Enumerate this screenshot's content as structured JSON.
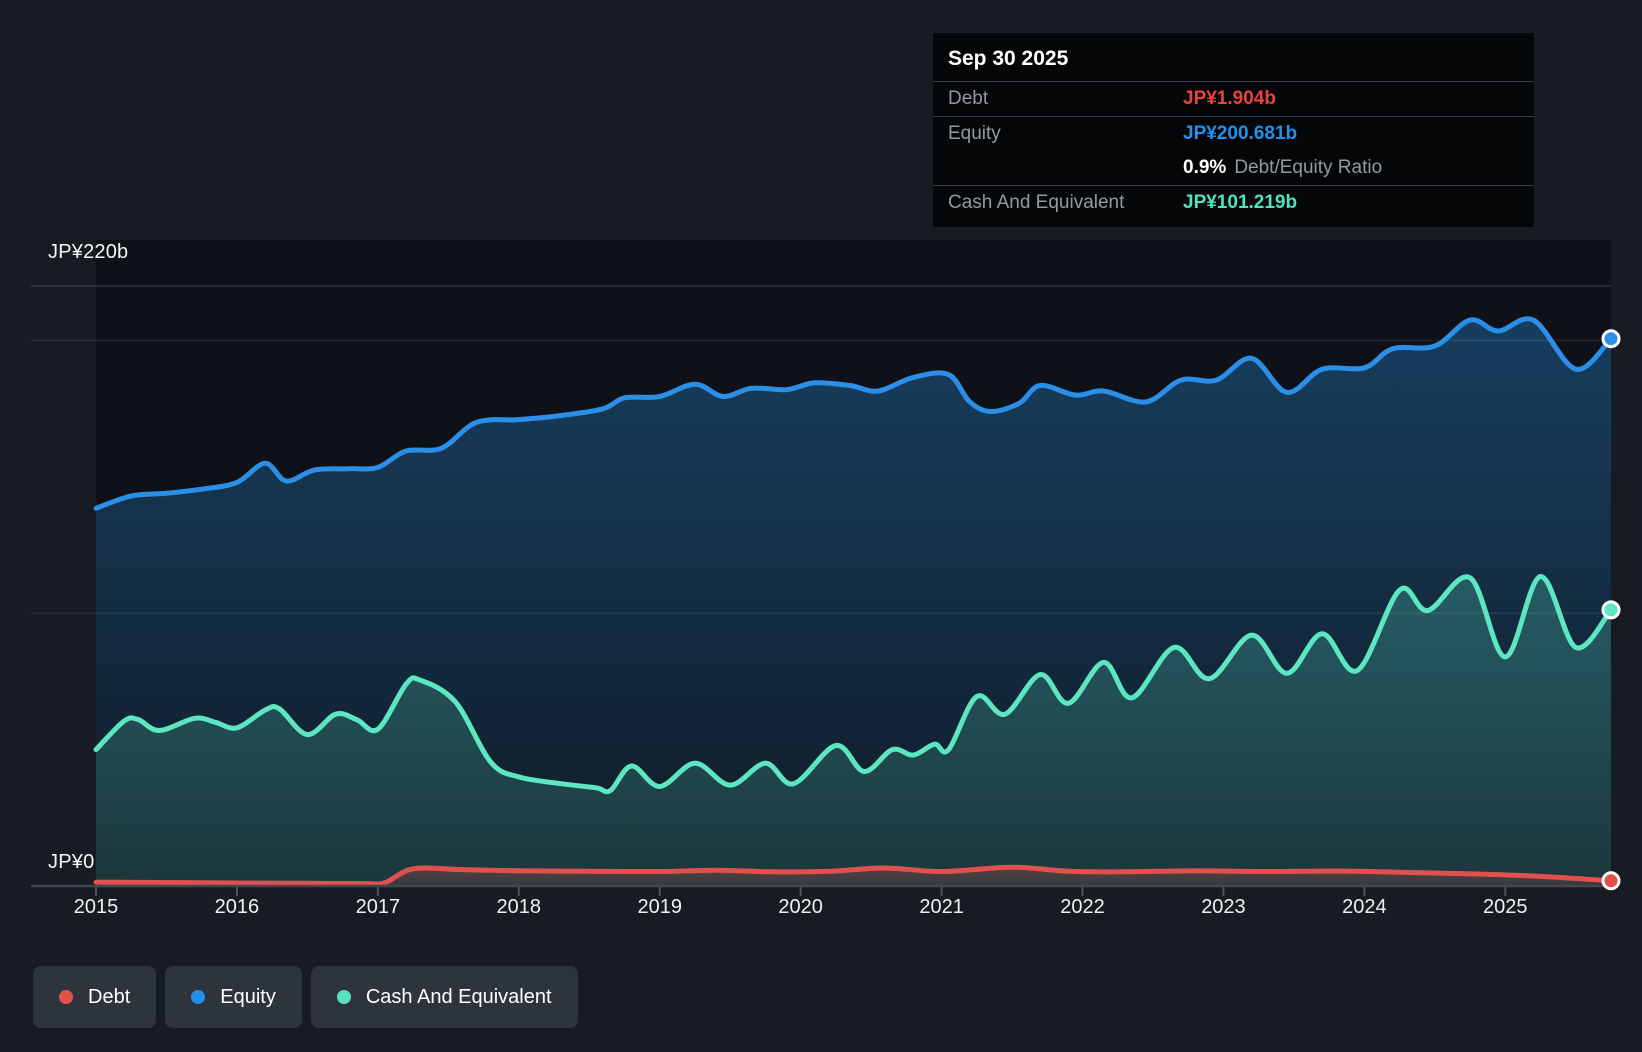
{
  "y_axis": {
    "top_label": "JP¥220b",
    "zero_label": "JP¥0"
  },
  "x_axis": {
    "ticks": [
      "2015",
      "2016",
      "2017",
      "2018",
      "2019",
      "2020",
      "2021",
      "2022",
      "2023",
      "2024",
      "2025"
    ]
  },
  "tooltip": {
    "title": "Sep 30 2025",
    "rows": [
      {
        "label": "Debt",
        "value": "JP¥1.904b",
        "color": "#e8433f"
      },
      {
        "label": "Equity",
        "value": "JP¥200.681b",
        "color": "#2292ec"
      }
    ],
    "ratio_value": "0.9%",
    "ratio_label": "Debt/Equity Ratio",
    "cash_label": "Cash And Equivalent",
    "cash_value": "JP¥101.219b",
    "cash_color": "#4fe3c0"
  },
  "legend": [
    {
      "label": "Debt",
      "color": "#e5504c"
    },
    {
      "label": "Equity",
      "color": "#2090e8"
    },
    {
      "label": "Cash And Equivalent",
      "color": "#5ce0bd"
    }
  ],
  "chart_data": {
    "type": "area",
    "unit": "JP¥ billions",
    "x_range": [
      2015.0,
      2025.75
    ],
    "ylim": [
      0,
      220
    ],
    "grid_values": [
      220,
      200,
      100,
      0
    ],
    "legend_position": "bottom-left",
    "hovered_point": {
      "date": "Sep 30 2025",
      "debt": 1.904,
      "equity": 200.681,
      "cash": 101.219,
      "debt_equity_ratio_pct": 0.9
    },
    "series": [
      {
        "name": "Equity",
        "color": "#2b8fe8",
        "points": [
          [
            2015.0,
            138.5
          ],
          [
            2015.25,
            143
          ],
          [
            2015.5,
            144
          ],
          [
            2015.75,
            145.5
          ],
          [
            2016.0,
            148
          ],
          [
            2016.2,
            155
          ],
          [
            2016.35,
            148.5
          ],
          [
            2016.55,
            152.5
          ],
          [
            2016.8,
            153
          ],
          [
            2017.0,
            153.5
          ],
          [
            2017.2,
            159.5
          ],
          [
            2017.45,
            160.5
          ],
          [
            2017.7,
            170
          ],
          [
            2018.0,
            171
          ],
          [
            2018.3,
            172.5
          ],
          [
            2018.6,
            175
          ],
          [
            2018.75,
            179
          ],
          [
            2019.0,
            179.5
          ],
          [
            2019.25,
            184
          ],
          [
            2019.45,
            179.5
          ],
          [
            2019.65,
            182.5
          ],
          [
            2019.9,
            182
          ],
          [
            2020.1,
            184.5
          ],
          [
            2020.35,
            183.5
          ],
          [
            2020.55,
            181.5
          ],
          [
            2020.8,
            186.5
          ],
          [
            2021.05,
            187.5
          ],
          [
            2021.2,
            177.5
          ],
          [
            2021.35,
            174
          ],
          [
            2021.55,
            177
          ],
          [
            2021.7,
            183.5
          ],
          [
            2021.95,
            180
          ],
          [
            2022.15,
            181.5
          ],
          [
            2022.45,
            177.5
          ],
          [
            2022.7,
            185.5
          ],
          [
            2022.95,
            185.5
          ],
          [
            2023.2,
            193.5
          ],
          [
            2023.45,
            181
          ],
          [
            2023.7,
            189.5
          ],
          [
            2024.0,
            190
          ],
          [
            2024.2,
            197
          ],
          [
            2024.5,
            198
          ],
          [
            2024.75,
            207.5
          ],
          [
            2024.95,
            203.5
          ],
          [
            2025.2,
            207.5
          ],
          [
            2025.5,
            189.5
          ],
          [
            2025.75,
            200.681
          ]
        ]
      },
      {
        "name": "Cash And Equivalent",
        "color": "#5ce6c2",
        "points": [
          [
            2015.0,
            50
          ],
          [
            2015.2,
            60.5
          ],
          [
            2015.3,
            61
          ],
          [
            2015.45,
            57
          ],
          [
            2015.7,
            61.5
          ],
          [
            2015.85,
            60
          ],
          [
            2016.0,
            58
          ],
          [
            2016.2,
            64.5
          ],
          [
            2016.3,
            65
          ],
          [
            2016.5,
            55.5
          ],
          [
            2016.7,
            63
          ],
          [
            2016.85,
            61
          ],
          [
            2017.0,
            57.5
          ],
          [
            2017.2,
            74
          ],
          [
            2017.3,
            75.5
          ],
          [
            2017.55,
            67.5
          ],
          [
            2017.8,
            45.5
          ],
          [
            2018.0,
            40
          ],
          [
            2018.3,
            37.5
          ],
          [
            2018.55,
            36
          ],
          [
            2018.65,
            35
          ],
          [
            2018.8,
            44
          ],
          [
            2019.0,
            36.5
          ],
          [
            2019.25,
            45
          ],
          [
            2019.5,
            37
          ],
          [
            2019.75,
            45
          ],
          [
            2019.95,
            37.5
          ],
          [
            2020.25,
            51.5
          ],
          [
            2020.45,
            42
          ],
          [
            2020.65,
            50
          ],
          [
            2020.8,
            48
          ],
          [
            2020.95,
            52
          ],
          [
            2021.05,
            50
          ],
          [
            2021.25,
            69.5
          ],
          [
            2021.45,
            63
          ],
          [
            2021.7,
            77.5
          ],
          [
            2021.9,
            67
          ],
          [
            2022.15,
            82
          ],
          [
            2022.35,
            69
          ],
          [
            2022.65,
            87.5
          ],
          [
            2022.9,
            76
          ],
          [
            2023.2,
            92
          ],
          [
            2023.45,
            78
          ],
          [
            2023.7,
            92.5
          ],
          [
            2023.95,
            79
          ],
          [
            2024.25,
            108.5
          ],
          [
            2024.45,
            101
          ],
          [
            2024.75,
            113
          ],
          [
            2025.0,
            84
          ],
          [
            2025.25,
            113.5
          ],
          [
            2025.5,
            87.5
          ],
          [
            2025.75,
            101.219
          ]
        ]
      },
      {
        "name": "Debt",
        "color": "#e0514e",
        "points": [
          [
            2015.0,
            1.4
          ],
          [
            2015.5,
            1.3
          ],
          [
            2016.0,
            1.1
          ],
          [
            2016.5,
            1.0
          ],
          [
            2016.9,
            0.9
          ],
          [
            2017.05,
            1.2
          ],
          [
            2017.25,
            6.3
          ],
          [
            2017.6,
            6.0
          ],
          [
            2018.0,
            5.6
          ],
          [
            2018.5,
            5.4
          ],
          [
            2019.0,
            5.3
          ],
          [
            2019.4,
            5.8
          ],
          [
            2019.8,
            5.2
          ],
          [
            2020.2,
            5.4
          ],
          [
            2020.6,
            6.6
          ],
          [
            2021.0,
            5.3
          ],
          [
            2021.5,
            6.9
          ],
          [
            2021.9,
            5.4
          ],
          [
            2022.3,
            5.2
          ],
          [
            2022.8,
            5.6
          ],
          [
            2023.3,
            5.3
          ],
          [
            2023.8,
            5.5
          ],
          [
            2024.3,
            5.0
          ],
          [
            2024.8,
            4.4
          ],
          [
            2025.3,
            3.4
          ],
          [
            2025.75,
            1.904
          ]
        ]
      }
    ]
  }
}
